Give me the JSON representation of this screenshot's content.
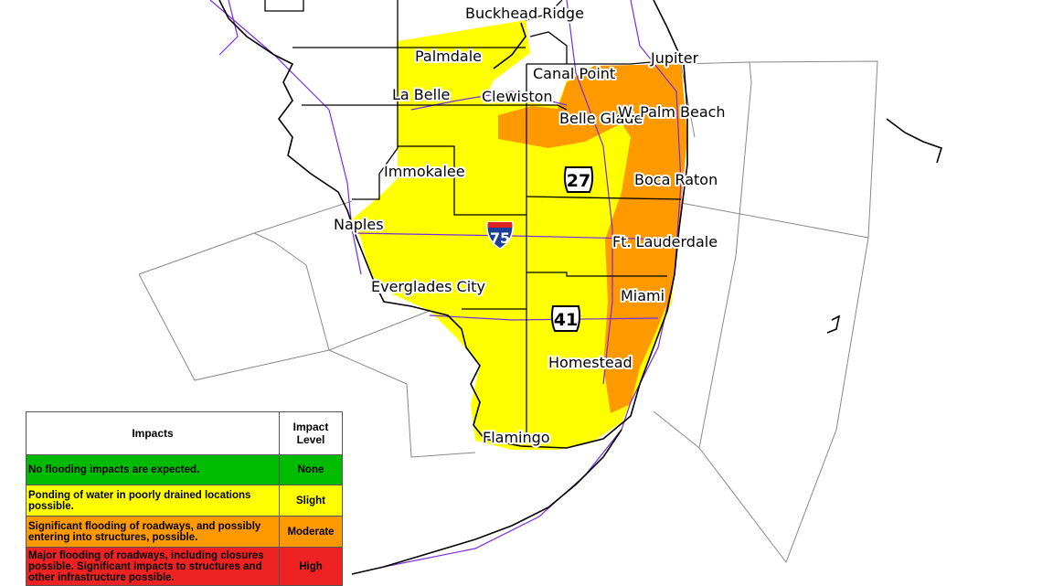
{
  "map": {
    "labels": [
      "Buckhead Ridge",
      "Palmdale",
      "La Belle",
      "Clewiston",
      "Canal Point",
      "Jupiter",
      "Belle Glade",
      "W. Palm Beach",
      "Immokalee",
      "Boca Raton",
      "Naples",
      "Ft. Lauderdale",
      "Everglades City",
      "Miami",
      "Homestead",
      "Flamingo"
    ],
    "shields": [
      "75",
      "27",
      "41"
    ]
  },
  "legend": {
    "header": [
      "Impacts",
      "Impact Level"
    ],
    "rows": [
      [
        "No flooding impacts are expected.",
        "None"
      ],
      [
        "Ponding of water in poorly drained locations possible.",
        "Slight"
      ],
      [
        "Significant flooding of roadways, and possibly entering into structures, possible.",
        "Moderate"
      ],
      [
        "Major flooding of roadways, including closures possible. Significant impacts to structures and other infrastructure possible.",
        "High"
      ]
    ]
  }
}
